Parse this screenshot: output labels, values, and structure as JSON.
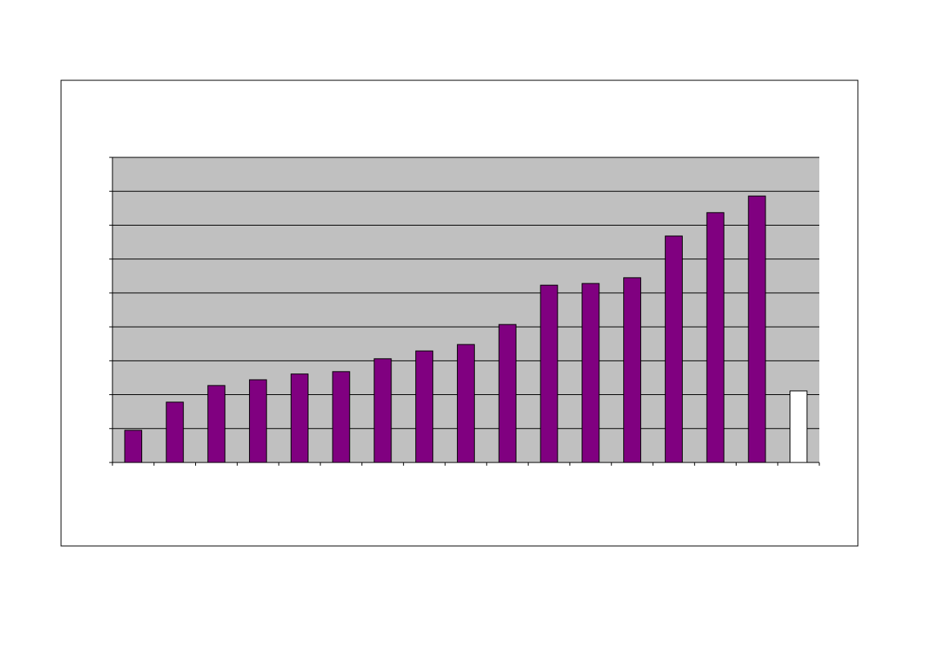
{
  "chart_data": {
    "type": "bar",
    "categories": [
      null,
      null,
      null,
      null,
      null,
      null,
      null,
      null,
      null,
      null,
      null,
      null,
      null,
      null,
      null,
      null,
      null
    ],
    "values": [
      0.95,
      1.78,
      2.27,
      2.44,
      2.61,
      2.68,
      3.06,
      3.29,
      3.48,
      4.07,
      5.23,
      5.28,
      5.45,
      6.68,
      7.37,
      7.86,
      2.11
    ],
    "colors": [
      "#800080",
      "#800080",
      "#800080",
      "#800080",
      "#800080",
      "#800080",
      "#800080",
      "#800080",
      "#800080",
      "#800080",
      "#800080",
      "#800080",
      "#800080",
      "#800080",
      "#800080",
      "#800080",
      "#ffffff"
    ],
    "plot_background": "#c0c0c0",
    "ylim": [
      0,
      9
    ],
    "yticks": [
      0,
      1,
      2,
      3,
      4,
      5,
      6,
      7,
      8,
      9
    ],
    "grid": true
  }
}
